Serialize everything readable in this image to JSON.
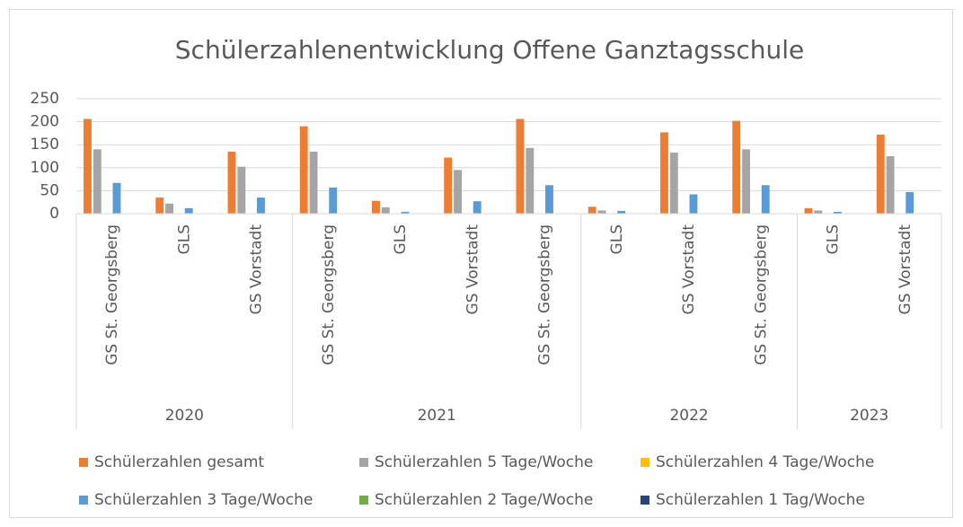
{
  "chart_data": {
    "type": "bar",
    "title": "Schülerzahlenentwicklung Offene Ganztagsschule",
    "groups": [
      {
        "name": "2020",
        "categories": [
          "GS St. Georgsberg",
          "GLS",
          "GS Vorstadt"
        ]
      },
      {
        "name": "2021",
        "categories": [
          "GS St. Georgsberg",
          "GLS",
          "GS Vorstadt",
          "GS St. Georgsberg"
        ]
      },
      {
        "name": "2022",
        "categories": [
          "GLS",
          "GS Vorstadt",
          "GS St. Georgsberg"
        ]
      },
      {
        "name": "2023",
        "categories": [
          "GLS",
          "GS Vorstadt"
        ]
      }
    ],
    "series": [
      {
        "name": "Schülerzahlen gesamt",
        "color": "#ed7d31",
        "values": [
          206,
          35,
          135,
          190,
          28,
          122,
          206,
          15,
          177,
          202,
          12,
          172
        ]
      },
      {
        "name": "Schülerzahlen 5 Tage/Woche",
        "color": "#a5a5a5",
        "values": [
          140,
          22,
          102,
          135,
          14,
          95,
          143,
          7,
          133,
          140,
          7,
          125
        ]
      },
      {
        "name": "Schülerzahlen 4 Tage/Woche",
        "color": "#ffc000",
        "values": [
          0,
          0,
          0,
          0,
          0,
          0,
          0,
          0,
          0,
          0,
          0,
          0
        ]
      },
      {
        "name": "Schülerzahlen 3 Tage/Woche",
        "color": "#5b9bd5",
        "values": [
          67,
          12,
          35,
          57,
          4,
          27,
          62,
          6,
          42,
          62,
          4,
          47
        ]
      },
      {
        "name": "Schülerzahlen 2 Tage/Woche",
        "color": "#70ad47",
        "values": [
          0,
          0,
          0,
          0,
          0,
          0,
          0,
          0,
          0,
          0,
          0,
          0
        ]
      },
      {
        "name": "Schülerzahlen 1 Tag/Woche",
        "color": "#264478",
        "values": [
          0,
          0,
          0,
          0,
          0,
          0,
          0,
          0,
          0,
          0,
          0,
          0
        ]
      }
    ],
    "ylim": [
      0,
      250
    ],
    "yticks": [
      0,
      50,
      100,
      150,
      200,
      250
    ],
    "grid": true,
    "legend": "bottom"
  }
}
